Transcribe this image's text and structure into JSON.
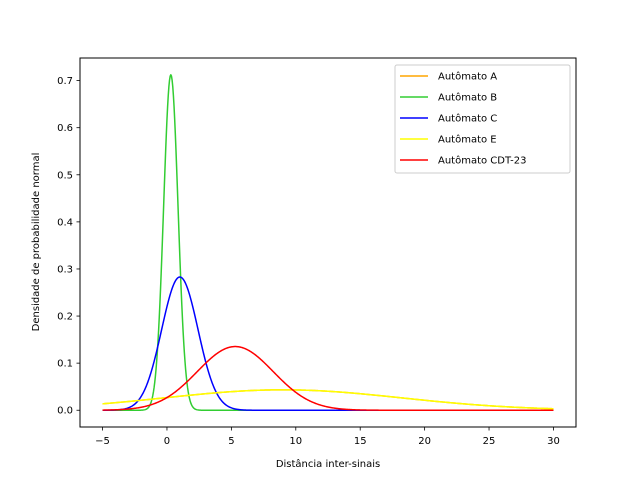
{
  "chart_data": {
    "type": "line",
    "xlabel": "Distância inter-sinais",
    "ylabel": "Densidade de probabilidade normal",
    "xlim": [
      -6.75,
      31.75
    ],
    "ylim": [
      -0.0356,
      0.748
    ],
    "xticks": [
      -5,
      0,
      5,
      10,
      15,
      20,
      25,
      30
    ],
    "xtick_labels": [
      "−5",
      "0",
      "5",
      "10",
      "15",
      "20",
      "25",
      "30"
    ],
    "yticks": [
      0.0,
      0.1,
      0.2,
      0.3,
      0.4,
      0.5,
      0.6,
      0.7
    ],
    "ytick_labels": [
      "0.0",
      "0.1",
      "0.2",
      "0.3",
      "0.4",
      "0.5",
      "0.6",
      "0.7"
    ],
    "grid": false,
    "legend_position": "upper right",
    "x_range": [
      -5,
      30
    ],
    "series": [
      {
        "name": "Autômato A",
        "color": "#ffa500",
        "distribution": "normal",
        "mean": 9.0,
        "std": 9.2
      },
      {
        "name": "Autômato B",
        "color": "#32cd32",
        "distribution": "normal",
        "mean": 0.3,
        "std": 0.56
      },
      {
        "name": "Autômato C",
        "color": "#0000ff",
        "distribution": "normal",
        "mean": 1.0,
        "std": 1.41
      },
      {
        "name": "Autômato E",
        "color": "#ffff00",
        "distribution": "normal",
        "mean": 9.0,
        "std": 9.2
      },
      {
        "name": "Autômato CDT-23",
        "color": "#ff0000",
        "distribution": "normal",
        "mean": 5.3,
        "std": 2.95
      }
    ]
  }
}
